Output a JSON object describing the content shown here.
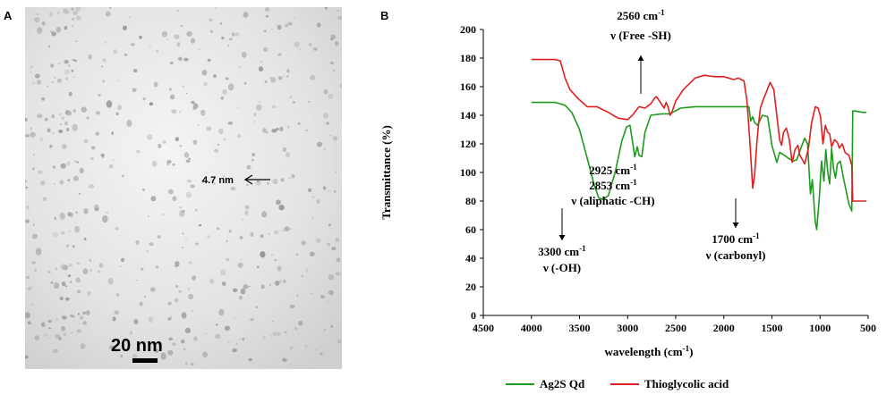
{
  "panel_a": {
    "letter": "A",
    "measurement_label": "4.7 nm",
    "scale_bar_label": "20 nm"
  },
  "panel_b": {
    "letter": "B"
  },
  "chart_data": {
    "type": "line",
    "xlabel": "wavelength (cm-1)",
    "ylabel": "Transmittance (%)",
    "xlim": [
      4500,
      500
    ],
    "ylim": [
      0,
      200
    ],
    "x_reversed": true,
    "x_ticks": [
      4500,
      4000,
      3500,
      3000,
      2500,
      2000,
      1500,
      1000,
      500
    ],
    "y_ticks": [
      0,
      20,
      40,
      60,
      80,
      100,
      120,
      140,
      160,
      180,
      200
    ],
    "legend_position": "bottom",
    "series": [
      {
        "name": "Ag2S Qd",
        "color": "#1e9a1e",
        "points": [
          [
            4000,
            149
          ],
          [
            3750,
            149
          ],
          [
            3650,
            147
          ],
          [
            3580,
            142
          ],
          [
            3500,
            130
          ],
          [
            3420,
            110
          ],
          [
            3350,
            92
          ],
          [
            3300,
            82
          ],
          [
            3250,
            81
          ],
          [
            3200,
            84
          ],
          [
            3130,
            100
          ],
          [
            3060,
            122
          ],
          [
            3010,
            132
          ],
          [
            2975,
            133
          ],
          [
            2950,
            122
          ],
          [
            2925,
            111
          ],
          [
            2900,
            118
          ],
          [
            2880,
            112
          ],
          [
            2853,
            111
          ],
          [
            2820,
            128
          ],
          [
            2760,
            140
          ],
          [
            2650,
            141
          ],
          [
            2560,
            141
          ],
          [
            2450,
            145
          ],
          [
            2300,
            146
          ],
          [
            2000,
            146
          ],
          [
            1830,
            146
          ],
          [
            1740,
            146
          ],
          [
            1720,
            136
          ],
          [
            1700,
            139
          ],
          [
            1680,
            135
          ],
          [
            1650,
            133
          ],
          [
            1600,
            140
          ],
          [
            1545,
            139
          ],
          [
            1500,
            119
          ],
          [
            1450,
            107
          ],
          [
            1420,
            114
          ],
          [
            1370,
            112
          ],
          [
            1330,
            110
          ],
          [
            1280,
            108
          ],
          [
            1240,
            109
          ],
          [
            1200,
            117
          ],
          [
            1160,
            124
          ],
          [
            1130,
            120
          ],
          [
            1100,
            85
          ],
          [
            1080,
            95
          ],
          [
            1050,
            66
          ],
          [
            1035,
            60
          ],
          [
            1010,
            80
          ],
          [
            985,
            108
          ],
          [
            960,
            94
          ],
          [
            940,
            116
          ],
          [
            920,
            100
          ],
          [
            900,
            92
          ],
          [
            880,
            117
          ],
          [
            860,
            103
          ],
          [
            840,
            96
          ],
          [
            820,
            106
          ],
          [
            790,
            108
          ],
          [
            750,
            94
          ],
          [
            700,
            78
          ],
          [
            670,
            73
          ],
          [
            660,
            143
          ],
          [
            640,
            143
          ],
          [
            550,
            142
          ],
          [
            520,
            142
          ]
        ]
      },
      {
        "name": "Thioglycolic acid",
        "color": "#e02020",
        "points": [
          [
            4000,
            179
          ],
          [
            3750,
            179
          ],
          [
            3700,
            178
          ],
          [
            3650,
            166
          ],
          [
            3600,
            158
          ],
          [
            3520,
            152
          ],
          [
            3420,
            146
          ],
          [
            3320,
            146
          ],
          [
            3200,
            142
          ],
          [
            3100,
            138
          ],
          [
            3000,
            137
          ],
          [
            2950,
            140
          ],
          [
            2880,
            146
          ],
          [
            2820,
            145
          ],
          [
            2760,
            148
          ],
          [
            2720,
            152
          ],
          [
            2700,
            153
          ],
          [
            2660,
            149
          ],
          [
            2620,
            145
          ],
          [
            2600,
            149
          ],
          [
            2575,
            145
          ],
          [
            2560,
            140
          ],
          [
            2540,
            142
          ],
          [
            2500,
            150
          ],
          [
            2420,
            158
          ],
          [
            2300,
            166
          ],
          [
            2200,
            168
          ],
          [
            2100,
            167
          ],
          [
            2000,
            167
          ],
          [
            1900,
            165
          ],
          [
            1850,
            166
          ],
          [
            1790,
            164
          ],
          [
            1760,
            150
          ],
          [
            1730,
            122
          ],
          [
            1700,
            89
          ],
          [
            1680,
            98
          ],
          [
            1660,
            118
          ],
          [
            1640,
            133
          ],
          [
            1620,
            145
          ],
          [
            1590,
            151
          ],
          [
            1560,
            156
          ],
          [
            1520,
            163
          ],
          [
            1480,
            158
          ],
          [
            1450,
            140
          ],
          [
            1420,
            123
          ],
          [
            1400,
            119
          ],
          [
            1380,
            128
          ],
          [
            1350,
            131
          ],
          [
            1320,
            123
          ],
          [
            1290,
            107
          ],
          [
            1260,
            116
          ],
          [
            1230,
            119
          ],
          [
            1210,
            112
          ],
          [
            1160,
            106
          ],
          [
            1120,
            117
          ],
          [
            1090,
            134
          ],
          [
            1050,
            146
          ],
          [
            1020,
            145
          ],
          [
            995,
            139
          ],
          [
            970,
            120
          ],
          [
            945,
            133
          ],
          [
            920,
            128
          ],
          [
            900,
            127
          ],
          [
            880,
            118
          ],
          [
            850,
            123
          ],
          [
            820,
            121
          ],
          [
            800,
            117
          ],
          [
            770,
            120
          ],
          [
            740,
            114
          ],
          [
            700,
            112
          ],
          [
            670,
            105
          ],
          [
            660,
            80
          ],
          [
            640,
            80
          ],
          [
            550,
            80
          ],
          [
            520,
            80
          ]
        ]
      }
    ],
    "annotations": [
      {
        "lines": [
          "2560 cm-1",
          "ν (Free -SH)"
        ],
        "arrow": "up"
      },
      {
        "lines": [
          "2925 cm-1",
          "2853 cm-1",
          "ν (aliphatic -CH)"
        ],
        "arrow": "none"
      },
      {
        "lines": [
          "3300 cm-1",
          "ν (-OH)"
        ],
        "arrow": "down"
      },
      {
        "lines": [
          "1700 cm-1",
          "ν (carbonyl)"
        ],
        "arrow": "down"
      }
    ]
  }
}
